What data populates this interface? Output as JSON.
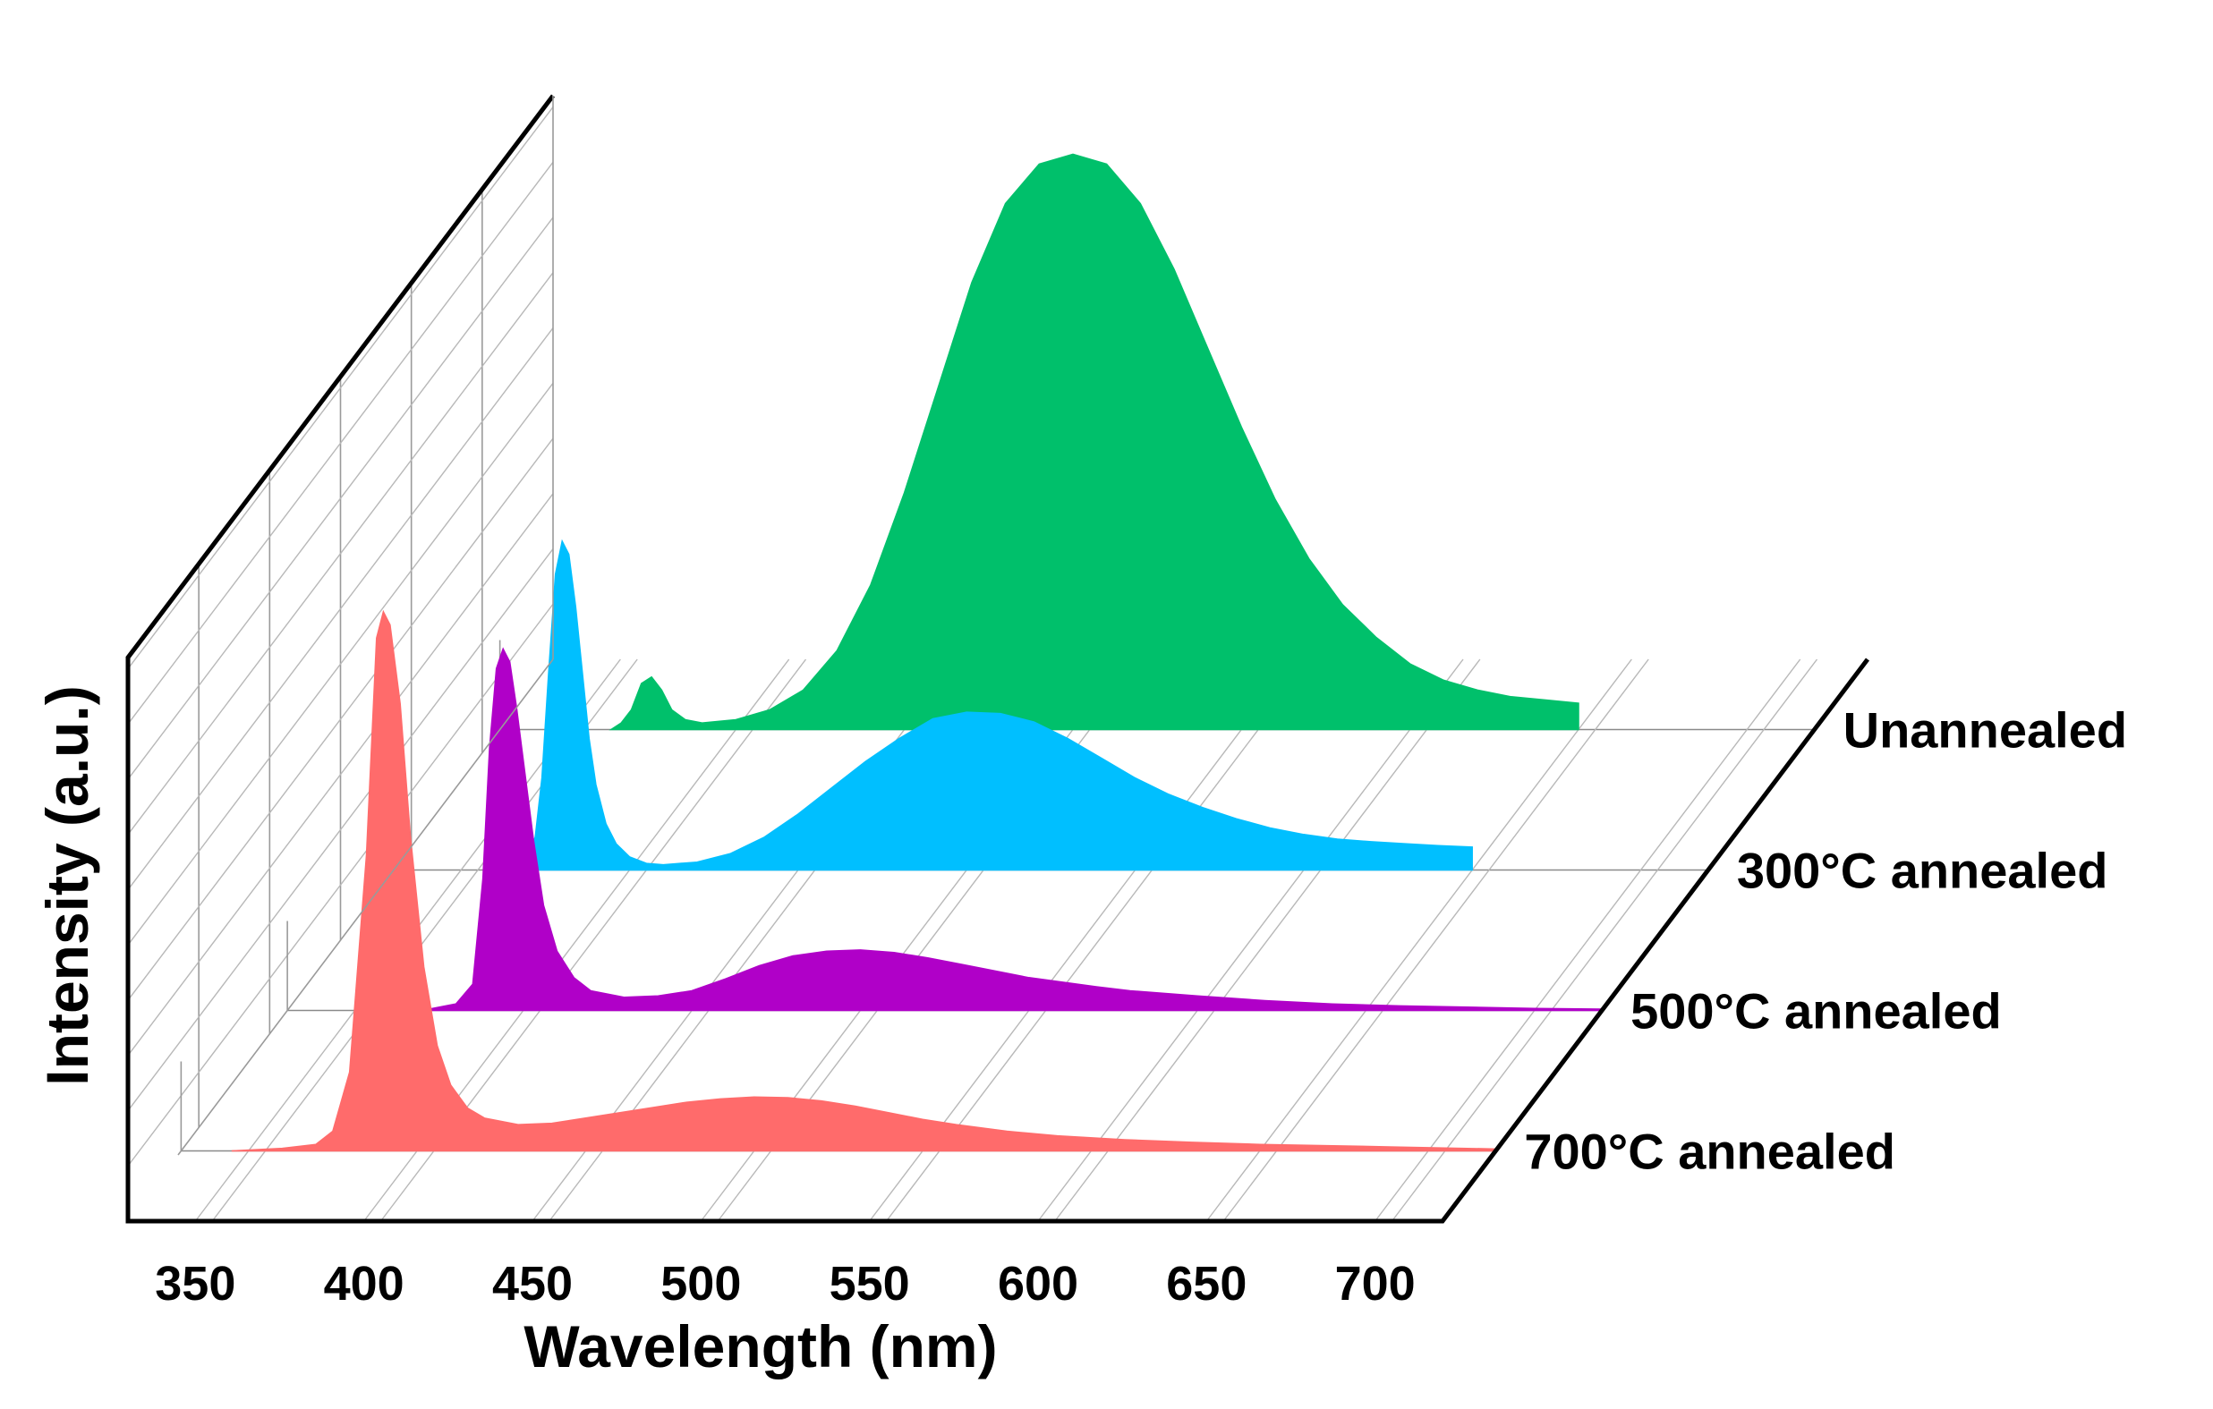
{
  "chart_data": {
    "type": "area",
    "title": "",
    "xlabel": "Wavelength (nm)",
    "ylabel": "Intensity (a.u.)",
    "xlim": [
      330,
      720
    ],
    "x_ticks": [
      350,
      400,
      450,
      500,
      550,
      600,
      650,
      700
    ],
    "x_tick_labels": [
      "350",
      "400",
      "450",
      "500",
      "550",
      "600",
      "650",
      "700"
    ],
    "ylim": [
      0,
      1
    ],
    "view": "3d-waterfall",
    "series": [
      {
        "name": "700°C annealed",
        "label": "700°C annealed",
        "color": "#ff6b6b",
        "wavelength": [
          345,
          360,
          370,
          375,
          380,
          385,
          388,
          390,
          392,
          395,
          398,
          402,
          406,
          410,
          415,
          420,
          430,
          440,
          450,
          460,
          470,
          480,
          490,
          500,
          510,
          520,
          530,
          540,
          550,
          560,
          575,
          590,
          610,
          630,
          650,
          670,
          690,
          710,
          720
        ],
        "intensity": [
          0.0,
          0.004,
          0.01,
          0.03,
          0.12,
          0.45,
          0.78,
          0.82,
          0.8,
          0.68,
          0.48,
          0.28,
          0.16,
          0.1,
          0.065,
          0.05,
          0.04,
          0.042,
          0.05,
          0.058,
          0.066,
          0.074,
          0.079,
          0.082,
          0.081,
          0.076,
          0.068,
          0.058,
          0.048,
          0.04,
          0.03,
          0.023,
          0.017,
          0.013,
          0.01,
          0.008,
          0.006,
          0.004,
          0.003
        ]
      },
      {
        "name": "500°C annealed",
        "label": "500°C annealed",
        "color": "#b000c8",
        "wavelength": [
          370,
          380,
          385,
          388,
          390,
          392,
          394,
          396,
          398,
          400,
          403,
          406,
          410,
          415,
          420,
          430,
          440,
          450,
          460,
          470,
          480,
          490,
          500,
          510,
          520,
          530,
          540,
          550,
          560,
          570,
          580,
          600,
          620,
          640,
          660,
          680,
          700,
          720
        ],
        "intensity": [
          0.0,
          0.01,
          0.04,
          0.2,
          0.4,
          0.52,
          0.55,
          0.53,
          0.46,
          0.38,
          0.26,
          0.16,
          0.09,
          0.05,
          0.03,
          0.02,
          0.022,
          0.03,
          0.048,
          0.068,
          0.083,
          0.09,
          0.092,
          0.088,
          0.08,
          0.07,
          0.06,
          0.05,
          0.043,
          0.036,
          0.03,
          0.022,
          0.015,
          0.01,
          0.007,
          0.005,
          0.003,
          0.002
        ]
      },
      {
        "name": "300°C annealed",
        "label": "300°C annealed",
        "color": "#00bfff",
        "wavelength": [
          364,
          369,
          372,
          374,
          376,
          378,
          380,
          382,
          384,
          386,
          388,
          390,
          393,
          396,
          400,
          405,
          410,
          420,
          430,
          440,
          450,
          460,
          470,
          480,
          490,
          500,
          510,
          520,
          530,
          540,
          550,
          560,
          570,
          580,
          590,
          600,
          610,
          620,
          630,
          640,
          650
        ],
        "intensity": [
          0.0,
          0.01,
          0.05,
          0.14,
          0.3,
          0.45,
          0.5,
          0.48,
          0.4,
          0.3,
          0.2,
          0.13,
          0.07,
          0.04,
          0.02,
          0.01,
          0.008,
          0.012,
          0.025,
          0.05,
          0.085,
          0.125,
          0.165,
          0.2,
          0.23,
          0.24,
          0.238,
          0.225,
          0.2,
          0.17,
          0.14,
          0.115,
          0.095,
          0.078,
          0.064,
          0.054,
          0.047,
          0.043,
          0.04,
          0.037,
          0.035
        ]
      },
      {
        "name": "Unannealed",
        "label": "Unannealed",
        "color": "#00c06b",
        "wavelength": [
          363,
          366,
          369,
          372,
          375,
          378,
          381,
          385,
          390,
          400,
          410,
          420,
          430,
          440,
          450,
          460,
          470,
          480,
          490,
          500,
          510,
          520,
          530,
          540,
          550,
          560,
          570,
          580,
          590,
          600,
          610,
          620,
          630,
          640,
          650
        ],
        "intensity": [
          0.0,
          0.01,
          0.03,
          0.07,
          0.08,
          0.06,
          0.03,
          0.015,
          0.01,
          0.015,
          0.03,
          0.06,
          0.12,
          0.22,
          0.36,
          0.52,
          0.68,
          0.8,
          0.86,
          0.875,
          0.86,
          0.8,
          0.7,
          0.58,
          0.46,
          0.35,
          0.26,
          0.19,
          0.14,
          0.1,
          0.075,
          0.06,
          0.05,
          0.045,
          0.04
        ]
      }
    ]
  }
}
